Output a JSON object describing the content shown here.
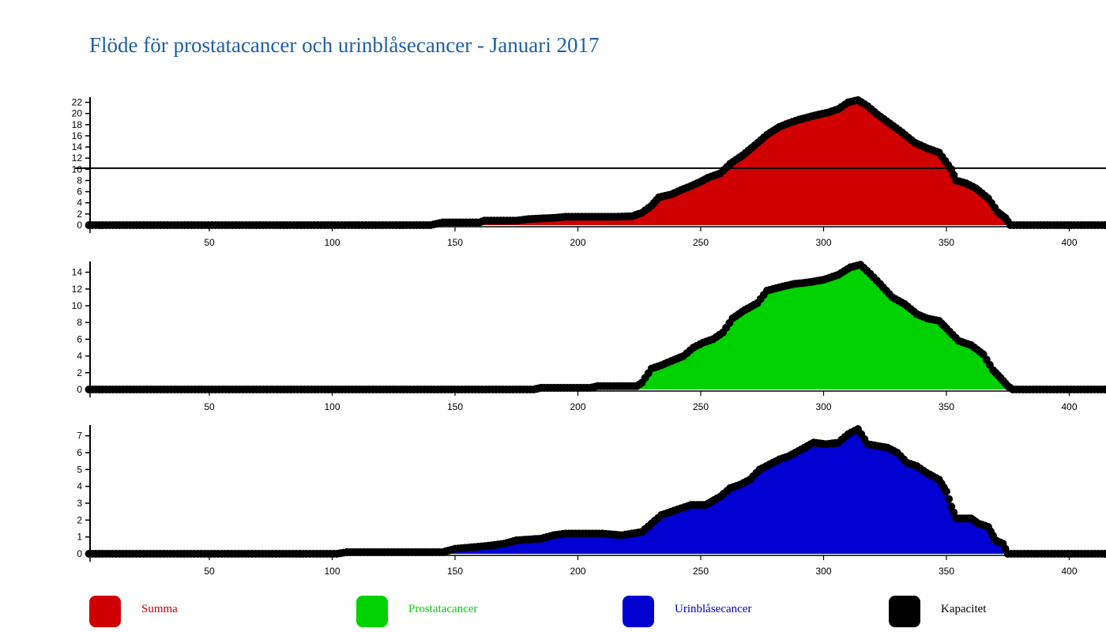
{
  "title": "Flöde för prostatacancer och urinblåsecancer - Januari 2017",
  "colors": {
    "title": "#1f5fa6",
    "summa": "#d10000",
    "prostata": "#00d100",
    "urinblasa": "#0000d1",
    "kapacitet": "#000000",
    "marker": "#000000"
  },
  "legend": [
    {
      "label": "Summa",
      "color": "#d10000"
    },
    {
      "label": "Prostatacancer",
      "color": "#00d100"
    },
    {
      "label": "Urinblåsecancer",
      "color": "#0000d1"
    },
    {
      "label": "Kapacitet",
      "color": "#000000"
    }
  ],
  "chart_data": [
    {
      "type": "area",
      "series_key": "summa",
      "xlim": [
        1,
        420
      ],
      "ylim": [
        0,
        22.5
      ],
      "x_ticks": [
        50,
        100,
        150,
        200,
        250,
        300,
        350,
        400
      ],
      "y_ticks": [
        0,
        2,
        4,
        6,
        8,
        10,
        12,
        14,
        16,
        18,
        20,
        22
      ],
      "capacity": 10.2,
      "points": [
        [
          1,
          0
        ],
        [
          140,
          0
        ],
        [
          145,
          0.5
        ],
        [
          160,
          0.5
        ],
        [
          162,
          0.8
        ],
        [
          175,
          0.8
        ],
        [
          180,
          1.1
        ],
        [
          190,
          1.3
        ],
        [
          195,
          1.5
        ],
        [
          215,
          1.5
        ],
        [
          222,
          1.6
        ],
        [
          226,
          2.2
        ],
        [
          230,
          3.5
        ],
        [
          233,
          5.0
        ],
        [
          238,
          5.5
        ],
        [
          242,
          6.3
        ],
        [
          246,
          7.0
        ],
        [
          250,
          7.8
        ],
        [
          253,
          8.5
        ],
        [
          258,
          9.3
        ],
        [
          262,
          11.0
        ],
        [
          267,
          12.5
        ],
        [
          272,
          14.3
        ],
        [
          277,
          16.2
        ],
        [
          282,
          17.6
        ],
        [
          286,
          18.3
        ],
        [
          290,
          18.9
        ],
        [
          296,
          19.6
        ],
        [
          302,
          20.2
        ],
        [
          306,
          20.8
        ],
        [
          310,
          22.0
        ],
        [
          314,
          22.4
        ],
        [
          318,
          21.3
        ],
        [
          322,
          19.8
        ],
        [
          327,
          18.2
        ],
        [
          332,
          16.6
        ],
        [
          337,
          14.8
        ],
        [
          342,
          13.8
        ],
        [
          347,
          13.0
        ],
        [
          352,
          10.0
        ],
        [
          354,
          8.0
        ],
        [
          358,
          7.5
        ],
        [
          362,
          6.6
        ],
        [
          367,
          4.8
        ],
        [
          371,
          2.3
        ],
        [
          374,
          1.3
        ],
        [
          376,
          0
        ],
        [
          420,
          0
        ]
      ]
    },
    {
      "type": "area",
      "series_key": "prostata",
      "xlim": [
        1,
        420
      ],
      "ylim": [
        0,
        15
      ],
      "x_ticks": [
        50,
        100,
        150,
        200,
        250,
        300,
        350,
        400
      ],
      "y_ticks": [
        0,
        2,
        4,
        6,
        8,
        10,
        12,
        14
      ],
      "points": [
        [
          1,
          0
        ],
        [
          182,
          0
        ],
        [
          185,
          0.2
        ],
        [
          205,
          0.2
        ],
        [
          208,
          0.4
        ],
        [
          224,
          0.4
        ],
        [
          226,
          0.8
        ],
        [
          230,
          2.5
        ],
        [
          234,
          2.9
        ],
        [
          238,
          3.4
        ],
        [
          243,
          4.0
        ],
        [
          247,
          5.0
        ],
        [
          251,
          5.6
        ],
        [
          255,
          6.0
        ],
        [
          259,
          6.8
        ],
        [
          263,
          8.5
        ],
        [
          268,
          9.5
        ],
        [
          273,
          10.3
        ],
        [
          277,
          11.8
        ],
        [
          282,
          12.2
        ],
        [
          288,
          12.6
        ],
        [
          294,
          12.8
        ],
        [
          300,
          13.1
        ],
        [
          306,
          13.7
        ],
        [
          311,
          14.6
        ],
        [
          315,
          14.9
        ],
        [
          319,
          13.8
        ],
        [
          323,
          12.6
        ],
        [
          328,
          11.0
        ],
        [
          333,
          10.2
        ],
        [
          338,
          9.0
        ],
        [
          342,
          8.5
        ],
        [
          347,
          8.2
        ],
        [
          350,
          7.3
        ],
        [
          355,
          5.8
        ],
        [
          360,
          5.3
        ],
        [
          365,
          4.2
        ],
        [
          369,
          2.3
        ],
        [
          372,
          1.4
        ],
        [
          375,
          0.4
        ],
        [
          377,
          0
        ],
        [
          420,
          0
        ]
      ]
    },
    {
      "type": "area",
      "series_key": "urinblasa",
      "xlim": [
        1,
        420
      ],
      "ylim": [
        0,
        7.5
      ],
      "x_ticks": [
        50,
        100,
        150,
        200,
        250,
        300,
        350,
        400
      ],
      "y_ticks": [
        0,
        1,
        2,
        3,
        4,
        5,
        6,
        7
      ],
      "points": [
        [
          1,
          0
        ],
        [
          102,
          0
        ],
        [
          106,
          0.1
        ],
        [
          145,
          0.1
        ],
        [
          150,
          0.3
        ],
        [
          158,
          0.4
        ],
        [
          165,
          0.5
        ],
        [
          170,
          0.6
        ],
        [
          175,
          0.8
        ],
        [
          185,
          0.9
        ],
        [
          190,
          1.1
        ],
        [
          195,
          1.2
        ],
        [
          210,
          1.2
        ],
        [
          218,
          1.1
        ],
        [
          222,
          1.2
        ],
        [
          226,
          1.3
        ],
        [
          230,
          1.8
        ],
        [
          234,
          2.3
        ],
        [
          238,
          2.5
        ],
        [
          242,
          2.7
        ],
        [
          246,
          2.9
        ],
        [
          252,
          2.9
        ],
        [
          258,
          3.4
        ],
        [
          262,
          3.9
        ],
        [
          266,
          4.1
        ],
        [
          270,
          4.4
        ],
        [
          274,
          5.0
        ],
        [
          278,
          5.3
        ],
        [
          282,
          5.6
        ],
        [
          286,
          5.8
        ],
        [
          291,
          6.2
        ],
        [
          296,
          6.6
        ],
        [
          301,
          6.5
        ],
        [
          306,
          6.6
        ],
        [
          310,
          7.1
        ],
        [
          314,
          7.4
        ],
        [
          318,
          6.5
        ],
        [
          322,
          6.4
        ],
        [
          326,
          6.3
        ],
        [
          330,
          6.0
        ],
        [
          334,
          5.4
        ],
        [
          338,
          5.2
        ],
        [
          342,
          4.8
        ],
        [
          347,
          4.4
        ],
        [
          350,
          3.7
        ],
        [
          352,
          2.8
        ],
        [
          354,
          2.1
        ],
        [
          360,
          2.1
        ],
        [
          363,
          1.8
        ],
        [
          367,
          1.6
        ],
        [
          370,
          0.8
        ],
        [
          373,
          0.6
        ],
        [
          375,
          0
        ],
        [
          420,
          0
        ]
      ]
    }
  ]
}
